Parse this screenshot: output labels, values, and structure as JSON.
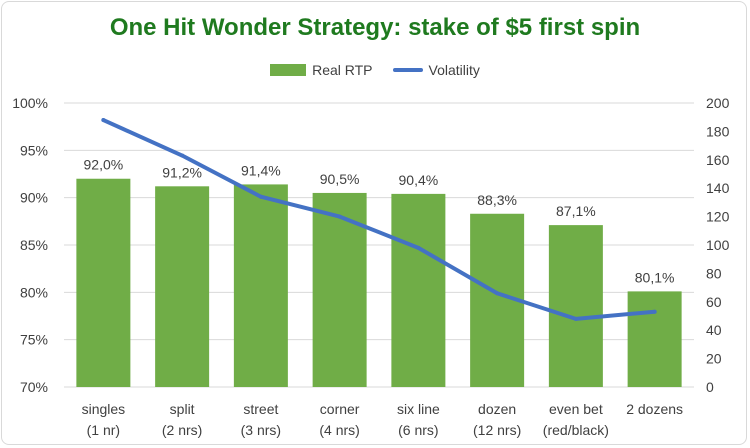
{
  "chart_data": {
    "type": "bar",
    "title": "One Hit Wonder Strategy: stake of $5 first spin",
    "categories": [
      [
        "singles",
        "(1 nr)"
      ],
      [
        "split",
        "(2 nrs)"
      ],
      [
        "street",
        "(3 nrs)"
      ],
      [
        "corner",
        "(4 nrs)"
      ],
      [
        "six line",
        "(6 nrs)"
      ],
      [
        "dozen",
        "(12 nrs)"
      ],
      [
        "even bet",
        "(red/black)"
      ],
      [
        "2 dozens",
        ""
      ]
    ],
    "series": [
      {
        "name": "Real RTP",
        "type": "bar",
        "axis": "left",
        "values": [
          92.0,
          91.2,
          91.4,
          90.5,
          90.4,
          88.3,
          87.1,
          80.1
        ],
        "labels": [
          "92,0%",
          "91,2%",
          "91,4%",
          "90,5%",
          "90,4%",
          "88,3%",
          "87,1%",
          "80,1%"
        ]
      },
      {
        "name": "Volatility",
        "type": "line",
        "axis": "right",
        "values": [
          188,
          163,
          134,
          120,
          98,
          66,
          48,
          53
        ]
      }
    ],
    "y_left": {
      "min": 70,
      "max": 100,
      "step": 5,
      "ticks": [
        "70%",
        "75%",
        "80%",
        "85%",
        "90%",
        "95%",
        "100%"
      ]
    },
    "y_right": {
      "min": 0,
      "max": 200,
      "step": 20,
      "ticks": [
        "0",
        "20",
        "40",
        "60",
        "80",
        "100",
        "120",
        "140",
        "160",
        "180",
        "200"
      ]
    },
    "grid": "horizontal",
    "legend_position": "top",
    "colors": {
      "bar": "#70ad47",
      "line": "#4472c4",
      "title": "#1f7a1f",
      "grid": "#d9d9d9"
    }
  }
}
